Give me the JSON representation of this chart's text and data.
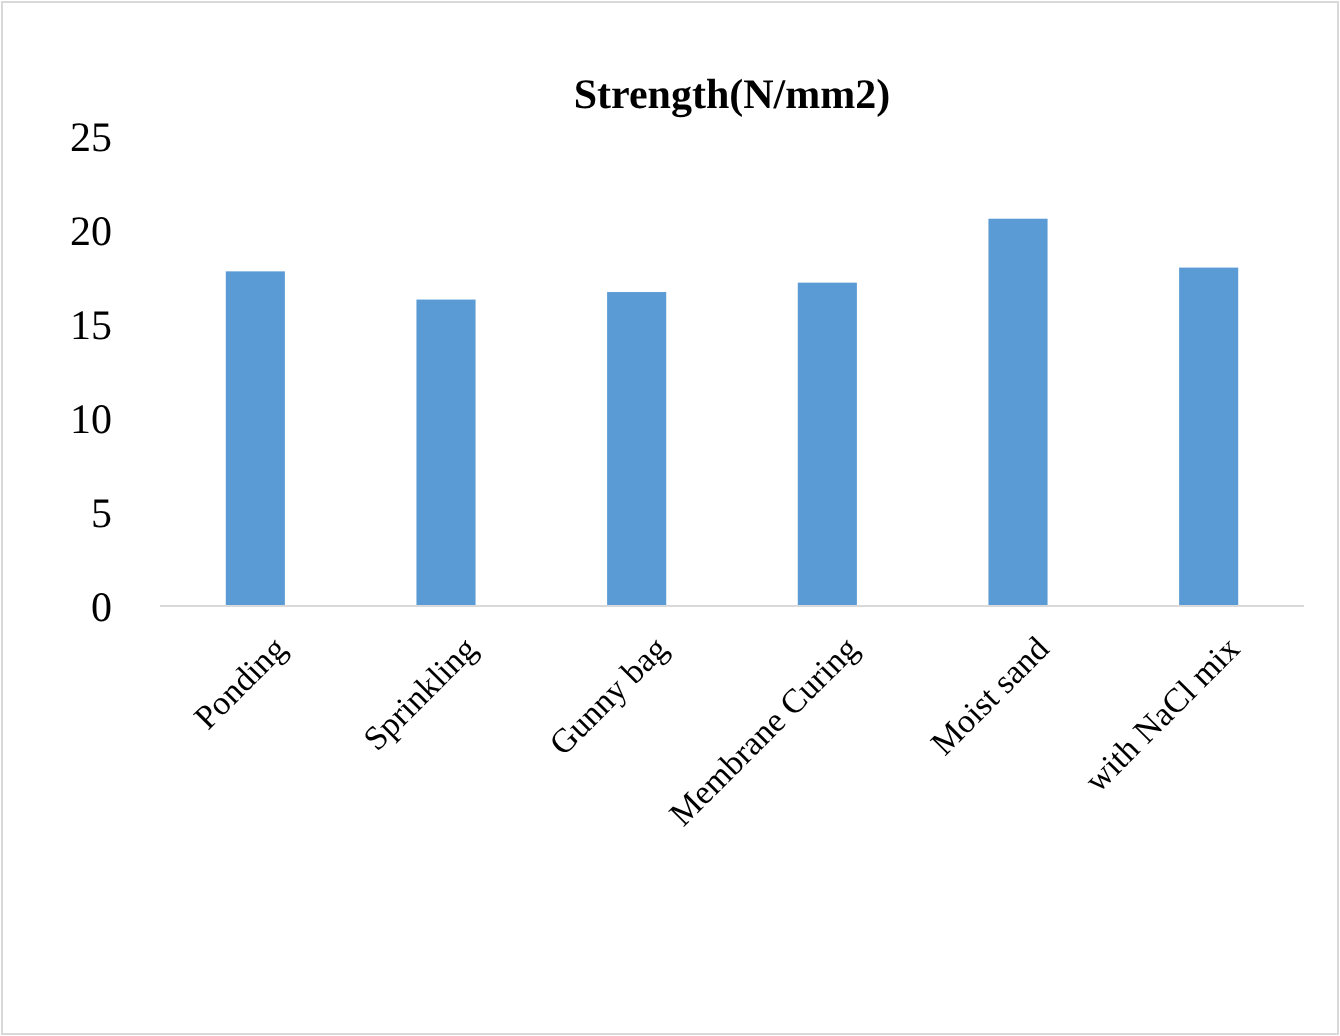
{
  "chart_data": {
    "type": "bar",
    "title": "Strength(N/mm2)",
    "categories": [
      "Ponding",
      "Sprinkling",
      "Gunny bag",
      "Membrane Curing",
      "Moist sand",
      "with NaCl mix"
    ],
    "values": [
      17.8,
      16.3,
      16.7,
      17.2,
      20.6,
      18.0
    ],
    "color": "#5b9bd5",
    "ylim": [
      0,
      25
    ],
    "yticks": [
      0,
      5,
      10,
      15,
      20,
      25
    ],
    "grid": false
  }
}
